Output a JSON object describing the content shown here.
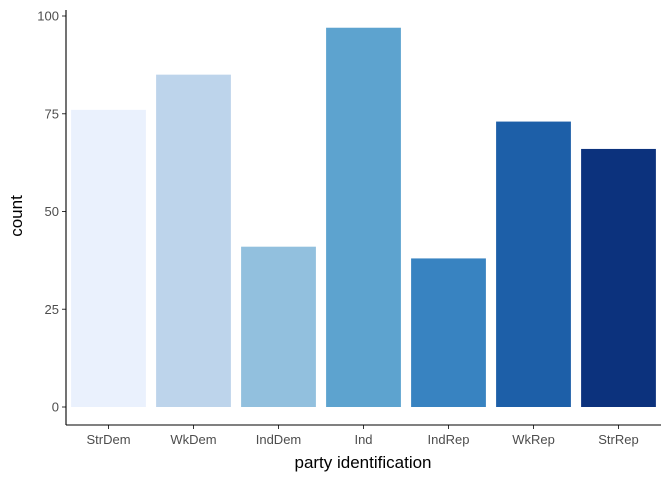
{
  "chart_data": {
    "type": "bar",
    "title": "",
    "xlabel": "party identification",
    "ylabel": "count",
    "categories": [
      "StrDem",
      "WkDem",
      "IndDem",
      "Ind",
      "IndRep",
      "WkRep",
      "StrRep"
    ],
    "values": [
      76,
      85,
      41,
      97,
      38,
      73,
      66
    ],
    "colors": [
      "#eaf1fd",
      "#bdd4eb",
      "#92c0de",
      "#5da3cf",
      "#3883c1",
      "#1d5fa8",
      "#0c327d"
    ],
    "ylim": [
      0,
      100
    ],
    "yticks": [
      0,
      25,
      50,
      75,
      100
    ],
    "grid": false,
    "legend": "none"
  }
}
